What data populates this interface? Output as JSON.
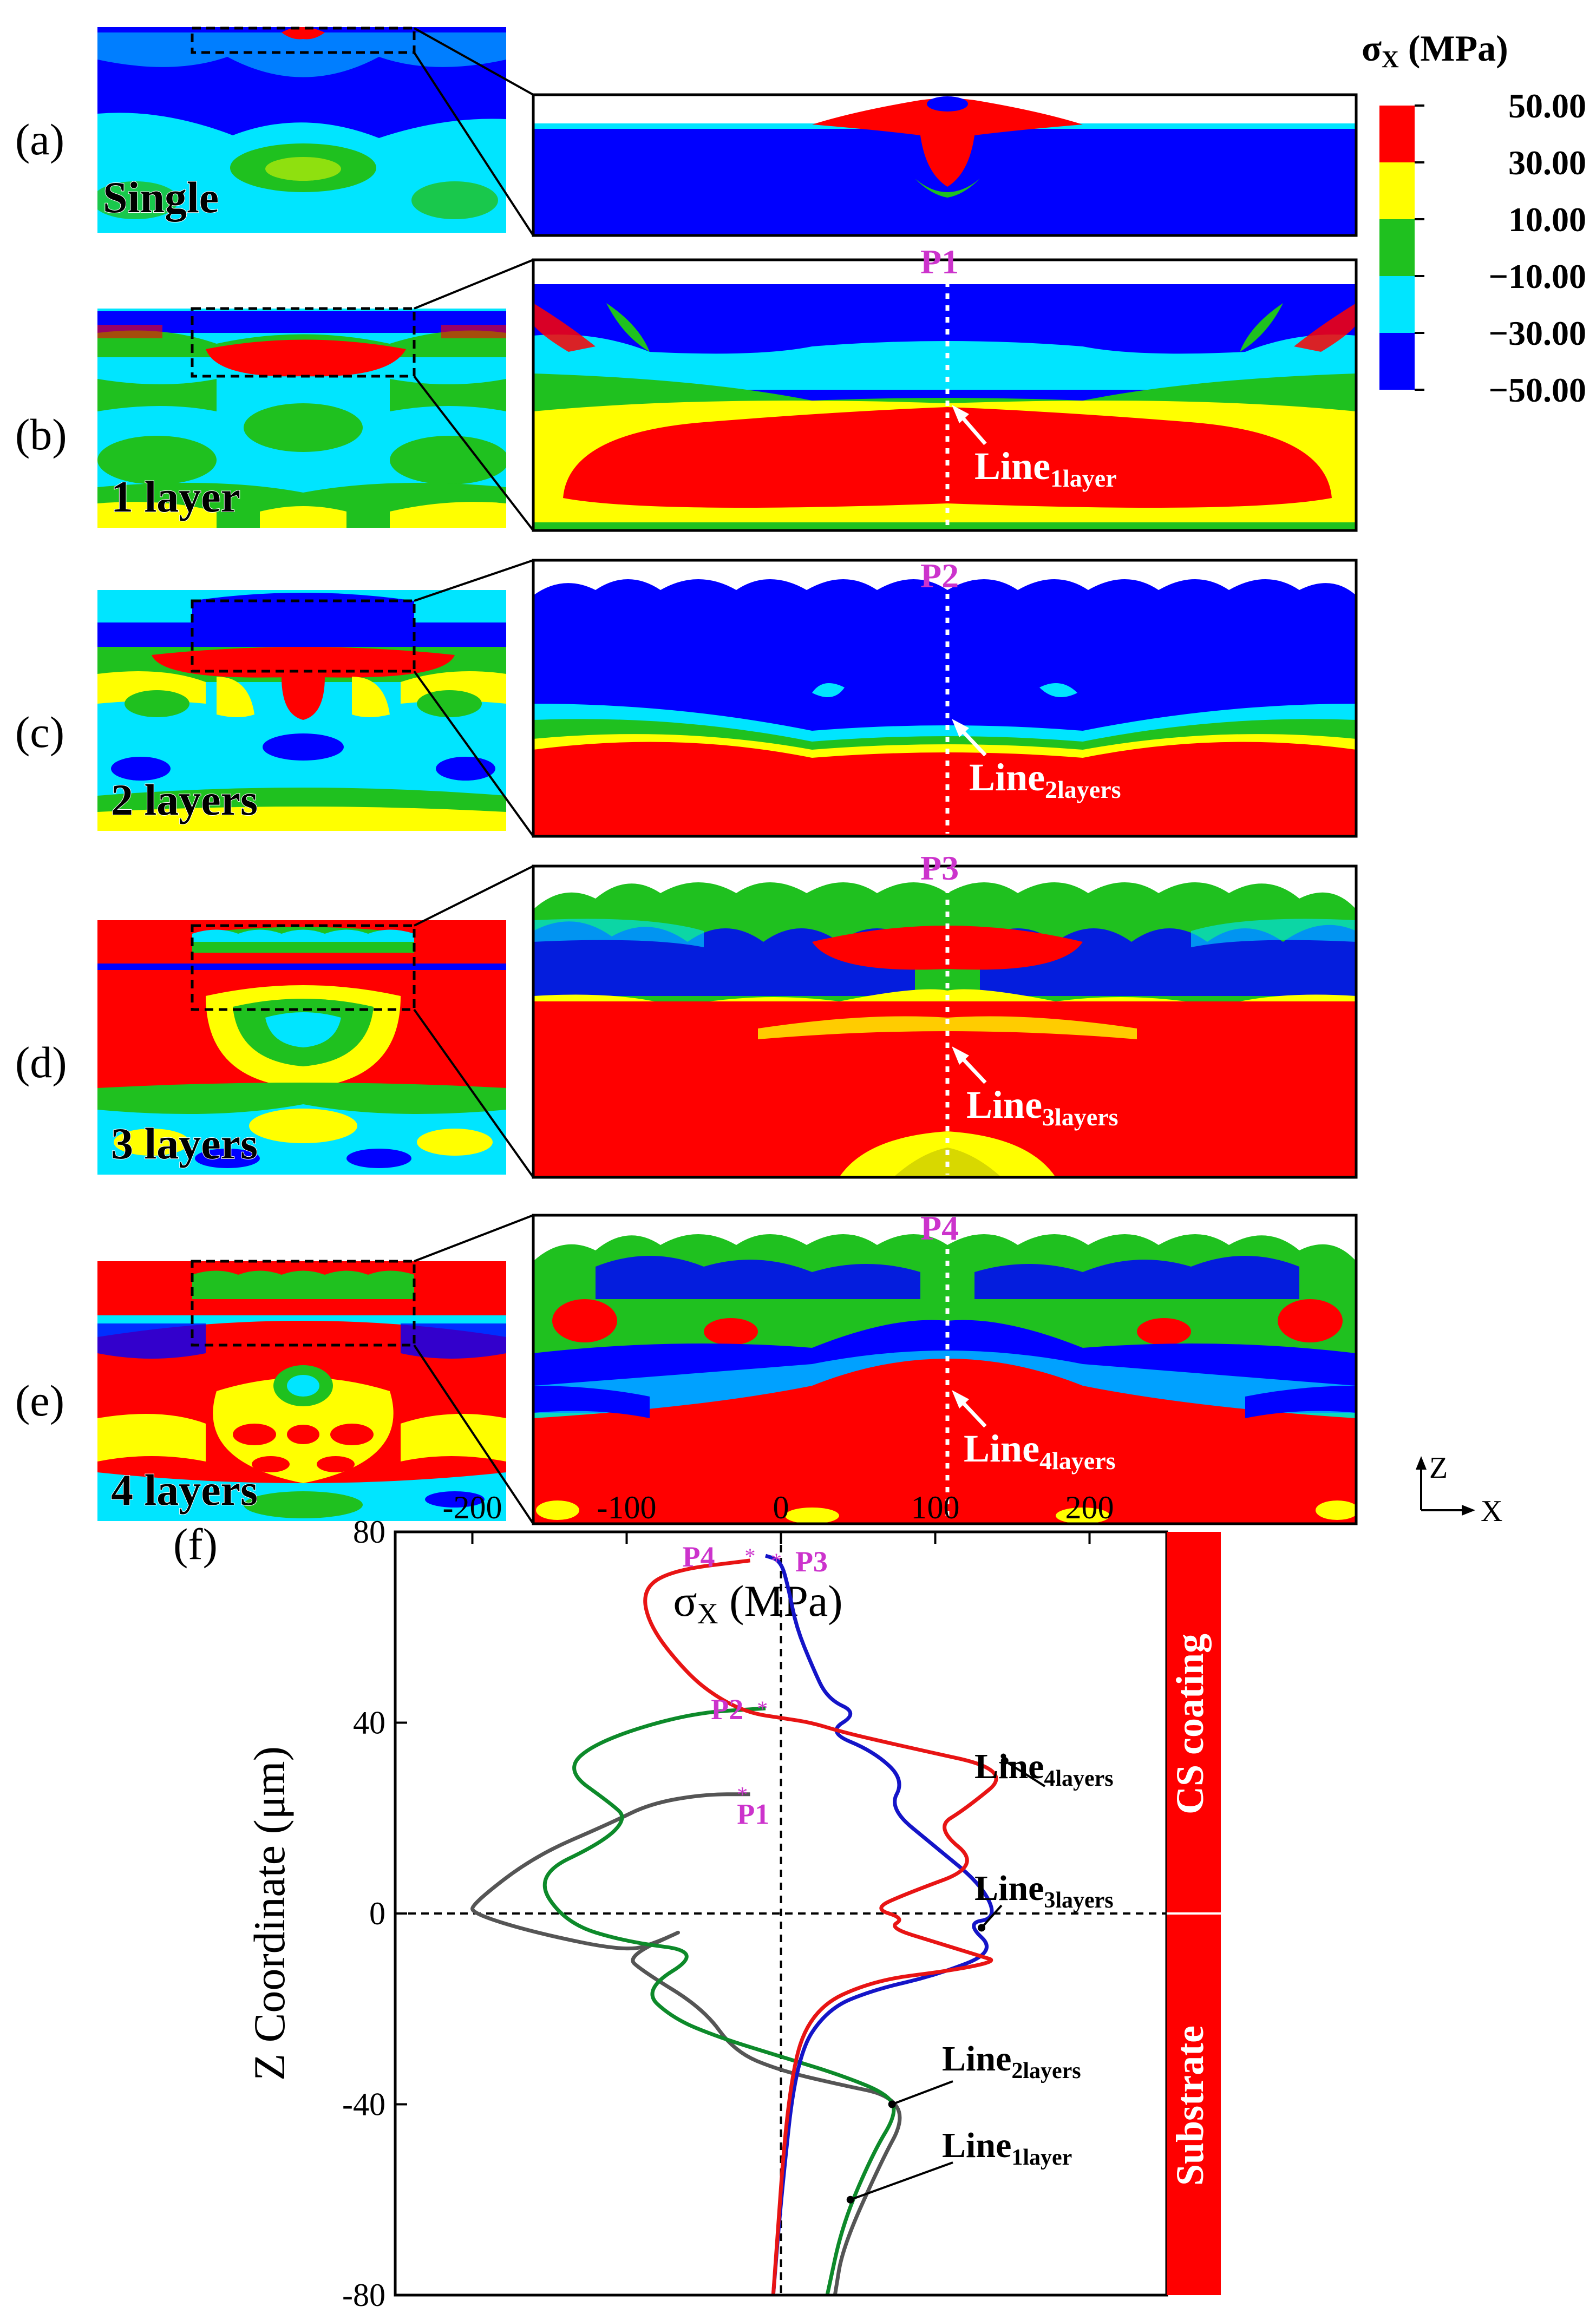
{
  "figure": {
    "panels": [
      {
        "id": "a",
        "label": "(a)",
        "name": "Single",
        "line": null,
        "point": null
      },
      {
        "id": "b",
        "label": "(b)",
        "name": "1 layer",
        "line": "Line",
        "line_sub": "1layer",
        "point": "P1"
      },
      {
        "id": "c",
        "label": "(c)",
        "name": "2 layers",
        "line": "Line",
        "line_sub": "2layers",
        "point": "P2"
      },
      {
        "id": "d",
        "label": "(d)",
        "name": "3 layers",
        "line": "Line",
        "line_sub": "3layers",
        "point": "P3"
      },
      {
        "id": "e",
        "label": "(e)",
        "name": "4 layers",
        "line": "Line",
        "line_sub": "4layers",
        "point": "P4"
      }
    ],
    "colorbar": {
      "title_sym": "σ",
      "title_sub": "X",
      "title_unit": " (MPa)",
      "ticks": [
        "50.00",
        "30.00",
        "10.00",
        "−10.00",
        "−30.00",
        "−50.00"
      ],
      "colors": [
        "#ff0000",
        "#ffff00",
        "#1fc11f",
        "#00e5ff",
        "#0000ff"
      ]
    },
    "axes_indicator": {
      "z": "Z",
      "x": "X"
    }
  },
  "chart_data": {
    "type": "line",
    "panel_label": "(f)",
    "title": "",
    "xlabel_sym": "σ",
    "xlabel_sub": "X",
    "xlabel_unit": " (MPa)",
    "ylabel": "Z Coordinate (μm)",
    "xlim": [
      -250,
      250
    ],
    "ylim": [
      -80,
      80
    ],
    "xticks": [
      -200,
      -100,
      0,
      100,
      200
    ],
    "yticks": [
      80,
      40,
      0,
      -40,
      -80
    ],
    "region_labels": [
      "CS coating",
      "Substrate"
    ],
    "region_color": "#ff0000",
    "series": [
      {
        "name": "Line",
        "sub": "1layer",
        "color": "#555555",
        "x": [
          -20,
          -50,
          -85,
          -110,
          -160,
          -200,
          -200,
          -160,
          -100,
          -80,
          -60,
          -100,
          -90,
          -50,
          -30,
          0,
          40,
          70,
          80,
          65,
          40,
          35
        ],
        "y": [
          25,
          25,
          23,
          19,
          12,
          2,
          0,
          -4,
          -8,
          -6,
          -3,
          -9,
          -12,
          -20,
          -29,
          -33,
          -36,
          -38,
          -43,
          -52,
          -70,
          -80
        ]
      },
      {
        "name": "Line",
        "sub": "2layers",
        "color": "#0d8a2a",
        "x": [
          -10,
          -60,
          -120,
          -140,
          -110,
          -100,
          -115,
          -160,
          -140,
          -100,
          -50,
          -90,
          -70,
          -40,
          0,
          40,
          70,
          75,
          60,
          40,
          30
        ],
        "y": [
          43,
          42,
          36,
          30,
          23,
          20,
          15,
          8,
          -2,
          -6,
          -8,
          -16,
          -22,
          -26,
          -30,
          -34,
          -38,
          -42,
          -50,
          -65,
          -80
        ]
      },
      {
        "name": "Line",
        "sub": "3layers",
        "color": "#1414c8",
        "x": [
          -10,
          0,
          5,
          10,
          20,
          30,
          50,
          30,
          60,
          80,
          70,
          100,
          130,
          140,
          120,
          140,
          100,
          60,
          30,
          10,
          0,
          -5
        ],
        "y": [
          75,
          74,
          68,
          60,
          52,
          45,
          42,
          38,
          34,
          28,
          22,
          14,
          6,
          -1,
          -2,
          -8,
          -13,
          -16,
          -20,
          -30,
          -60,
          -80
        ]
      },
      {
        "name": "Line",
        "sub": "4layers",
        "color": "#e81414",
        "x": [
          -20,
          -70,
          -90,
          -85,
          -60,
          -40,
          -20,
          0,
          20,
          40,
          80,
          150,
          120,
          100,
          130,
          80,
          60,
          80,
          70,
          100,
          130,
          140,
          110,
          60,
          20,
          5,
          -5
        ],
        "y": [
          74,
          72,
          68,
          60,
          50,
          45,
          42,
          41,
          40,
          38,
          35,
          30,
          22,
          18,
          10,
          4,
          1,
          -1,
          -3,
          -6,
          -9,
          -10,
          -12,
          -14,
          -20,
          -35,
          -80
        ]
      }
    ],
    "points": [
      {
        "label": "P1",
        "x": -25,
        "y": 25
      },
      {
        "label": "P2",
        "x": -12,
        "y": 43
      },
      {
        "label": "P3",
        "x": -3,
        "y": 74
      },
      {
        "label": "P4",
        "x": -20,
        "y": 75
      }
    ]
  }
}
